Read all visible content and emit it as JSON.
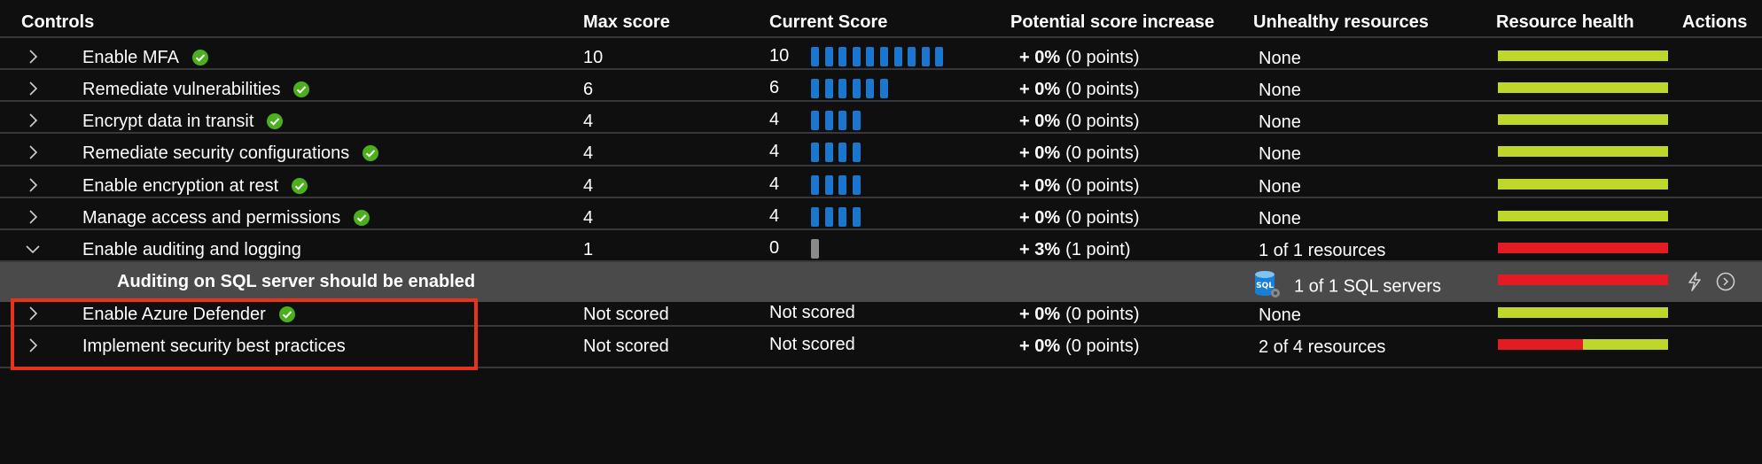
{
  "columns": {
    "controls": "Controls",
    "max_score": "Max score",
    "current_score": "Current Score",
    "potential": "Potential score increase",
    "unhealthy": "Unhealthy resources",
    "health": "Resource health",
    "actions": "Actions"
  },
  "colors": {
    "healthy": "#bfd62b",
    "unhealthy": "#e31b23",
    "score_bar": "#1b76cf",
    "highlight": "#e8321c",
    "check": "#4caf1e"
  },
  "rows": [
    {
      "name": "Enable MFA",
      "completed": true,
      "expanded": false,
      "max": "10",
      "current": "10",
      "segments": 10,
      "pct": "+ 0%",
      "points": "(0 points)",
      "unhealthy": "None",
      "health_unhealthy_fraction": 0
    },
    {
      "name": "Remediate vulnerabilities",
      "completed": true,
      "expanded": false,
      "max": "6",
      "current": "6",
      "segments": 6,
      "pct": "+ 0%",
      "points": "(0 points)",
      "unhealthy": "None",
      "health_unhealthy_fraction": 0
    },
    {
      "name": "Encrypt data in transit",
      "completed": true,
      "expanded": false,
      "max": "4",
      "current": "4",
      "segments": 4,
      "pct": "+ 0%",
      "points": "(0 points)",
      "unhealthy": "None",
      "health_unhealthy_fraction": 0
    },
    {
      "name": "Remediate security configurations",
      "completed": true,
      "expanded": false,
      "max": "4",
      "current": "4",
      "segments": 4,
      "pct": "+ 0%",
      "points": "(0 points)",
      "unhealthy": "None",
      "health_unhealthy_fraction": 0
    },
    {
      "name": "Enable encryption at rest",
      "completed": true,
      "expanded": false,
      "max": "4",
      "current": "4",
      "segments": 4,
      "pct": "+ 0%",
      "points": "(0 points)",
      "unhealthy": "None",
      "health_unhealthy_fraction": 0
    },
    {
      "name": "Manage access and permissions",
      "completed": true,
      "expanded": false,
      "max": "4",
      "current": "4",
      "segments": 4,
      "pct": "+ 0%",
      "points": "(0 points)",
      "unhealthy": "None",
      "health_unhealthy_fraction": 0
    },
    {
      "name": "Enable auditing and logging",
      "completed": false,
      "expanded": true,
      "max": "1",
      "current": "0",
      "segments": 0,
      "pct": "+ 3%",
      "points": "(1 point)",
      "unhealthy": "1 of 1 resources",
      "health_unhealthy_fraction": 1
    },
    {
      "name": "Enable Azure Defender",
      "completed": true,
      "expanded": false,
      "max": "Not scored",
      "current": "Not scored",
      "segments": null,
      "pct": "+ 0%",
      "points": "(0 points)",
      "unhealthy": "None",
      "health_unhealthy_fraction": 0
    },
    {
      "name": "Implement security best practices",
      "completed": false,
      "expanded": false,
      "max": "Not scored",
      "current": "Not scored",
      "segments": null,
      "pct": "+ 0%",
      "points": "(0 points)",
      "unhealthy": "2 of 4 resources",
      "health_unhealthy_fraction": 0.5
    }
  ],
  "subrow": {
    "name": "Auditing on SQL server should be enabled",
    "resource_icon": "sql-server-icon",
    "resource_icon_label": "SQL",
    "unhealthy": "1 of 1 SQL servers",
    "health_unhealthy_fraction": 1,
    "actions": [
      "quick-fix-icon",
      "view-recommendation-icon"
    ]
  }
}
